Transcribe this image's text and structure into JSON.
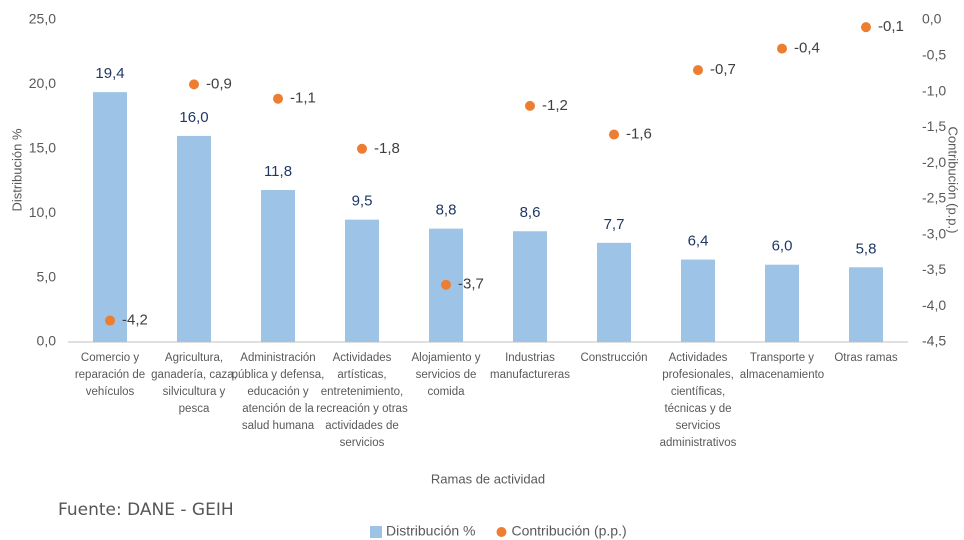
{
  "chart_data": {
    "type": "bar",
    "source": "Fuente: DANE - GEIH",
    "xlabel": "Ramas de actividad",
    "ylabel": "Distribución %",
    "y2label": "Contribución (p.p.)",
    "categories": [
      "Comercio y\nreparación de\nvehículos",
      "Agricultura,\nganadería, caza,\nsilvicultura y\npesca",
      "Administración\npública y defensa,\neducación y\natención de la\nsalud humana",
      "Actividades\nartísticas,\nentretenimiento,\nrecreación y otras\nactividades de\nservicios",
      "Alojamiento y\nservicios de\ncomida",
      "Industrias\nmanufactureras",
      "Construcción",
      "Actividades\nprofesionales,\ncientíficas,\ntécnicas y de\nservicios\nadministrativos",
      "Transporte y\nalmacenamiento",
      "Otras ramas"
    ],
    "series": [
      {
        "name": "Distribución %",
        "type": "bar",
        "color": "#9dc3e6",
        "values": [
          19.4,
          16.0,
          11.8,
          9.5,
          8.8,
          8.6,
          7.7,
          6.4,
          6.0,
          5.8
        ],
        "value_labels": [
          "19,4",
          "16,0",
          "11,8",
          "9,5",
          "8,8",
          "8,6",
          "7,7",
          "6,4",
          "6,0",
          "5,8"
        ]
      },
      {
        "name": "Contribución (p.p.)",
        "type": "scatter",
        "axis": "y2",
        "color": "#ed7d31",
        "values": [
          -4.2,
          -0.9,
          -1.1,
          -1.8,
          -3.7,
          -1.2,
          -1.6,
          -0.7,
          -0.4,
          -0.1
        ],
        "value_labels": [
          "-4,2",
          "-0,9",
          "-1,1",
          "-1,8",
          "-3,7",
          "-1,2",
          "-1,6",
          "-0,7",
          "-0,4",
          "-0,1"
        ]
      }
    ],
    "ylim": [
      0,
      25
    ],
    "yticks": [
      {
        "value": 0,
        "label": "0,0"
      },
      {
        "value": 5,
        "label": "5,0"
      },
      {
        "value": 10,
        "label": "10,0"
      },
      {
        "value": 15,
        "label": "15,0"
      },
      {
        "value": 20,
        "label": "20,0"
      },
      {
        "value": 25,
        "label": "25,0"
      }
    ],
    "y2lim": [
      -4.5,
      0
    ],
    "y2ticks": [
      {
        "value": 0,
        "label": "0,0"
      },
      {
        "value": -0.5,
        "label": "-0,5"
      },
      {
        "value": -1,
        "label": "-1,0"
      },
      {
        "value": -1.5,
        "label": "-1,5"
      },
      {
        "value": -2,
        "label": "-2,0"
      },
      {
        "value": -2.5,
        "label": "-2,5"
      },
      {
        "value": -3,
        "label": "-3,0"
      },
      {
        "value": -3.5,
        "label": "-3,5"
      },
      {
        "value": -4,
        "label": "-4,0"
      },
      {
        "value": -4.5,
        "label": "-4,5"
      }
    ],
    "grid": false,
    "legend": "bottom"
  }
}
